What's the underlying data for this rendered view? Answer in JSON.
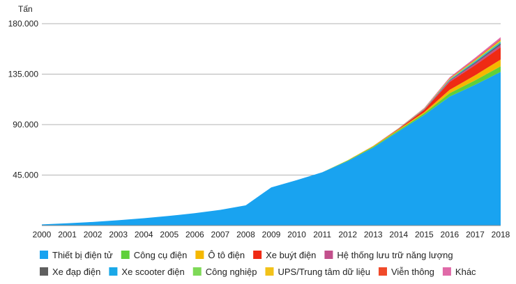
{
  "chart_data": {
    "type": "area",
    "stacked": true,
    "title": "",
    "xlabel": "",
    "ylabel": "Tấn",
    "ylim": [
      0,
      180000
    ],
    "yticks": [
      {
        "value": 45000,
        "label": "45.000"
      },
      {
        "value": 90000,
        "label": "90.000"
      },
      {
        "value": 135000,
        "label": "135.000"
      },
      {
        "value": 180000,
        "label": "180.000"
      }
    ],
    "categories": [
      "2000",
      "2001",
      "2002",
      "2003",
      "2004",
      "2005",
      "2006",
      "2007",
      "2008",
      "2009",
      "2010",
      "2011",
      "2012",
      "2013",
      "2014",
      "2015",
      "2016",
      "2017",
      "2018"
    ],
    "grid": true,
    "legend_position": "bottom",
    "series": [
      {
        "name": "Thiết bị điện tử",
        "color": "#19a3f0",
        "values": [
          1000,
          2000,
          3200,
          4700,
          6500,
          8600,
          11000,
          14000,
          18000,
          34000,
          40500,
          47500,
          57500,
          69500,
          84000,
          98500,
          115000,
          125500,
          137000
        ]
      },
      {
        "name": "Công cụ điện",
        "color": "#5fd03a",
        "values": [
          0,
          0,
          0,
          0,
          0,
          0,
          0,
          0,
          0,
          0,
          0,
          0,
          500,
          800,
          1000,
          1500,
          3000,
          4000,
          5000
        ]
      },
      {
        "name": "Ô tô điện",
        "color": "#f5b800",
        "values": [
          0,
          0,
          0,
          0,
          0,
          0,
          0,
          0,
          0,
          0,
          0,
          0,
          300,
          500,
          700,
          1000,
          3000,
          4500,
          6000
        ]
      },
      {
        "name": "Xe buýt điện",
        "color": "#ef2a14",
        "values": [
          0,
          0,
          0,
          0,
          0,
          0,
          0,
          0,
          0,
          0,
          0,
          0,
          0,
          200,
          500,
          2000,
          7000,
          9000,
          11000
        ]
      },
      {
        "name": "Hệ thống lưu trữ năng lượng",
        "color": "#c2508c",
        "values": [
          0,
          0,
          0,
          0,
          0,
          0,
          0,
          0,
          0,
          0,
          0,
          0,
          0,
          0,
          200,
          500,
          1000,
          1500,
          2000
        ]
      },
      {
        "name": "Xe đạp điện",
        "color": "#5f5f5f",
        "values": [
          0,
          0,
          0,
          0,
          0,
          0,
          0,
          0,
          0,
          0,
          0,
          0,
          0,
          0,
          100,
          300,
          500,
          1000,
          1500
        ]
      },
      {
        "name": "Xe scooter điện",
        "color": "#1aa8e8",
        "values": [
          0,
          0,
          0,
          0,
          0,
          0,
          0,
          0,
          0,
          0,
          0,
          0,
          0,
          0,
          100,
          200,
          500,
          800,
          1000
        ]
      },
      {
        "name": "Công nghiệp",
        "color": "#7ed957",
        "values": [
          0,
          0,
          0,
          0,
          0,
          0,
          0,
          0,
          0,
          0,
          0,
          0,
          0,
          0,
          100,
          200,
          500,
          800,
          1000
        ]
      },
      {
        "name": "UPS/Trung tâm dữ liệu",
        "color": "#f2c21a",
        "values": [
          0,
          0,
          0,
          0,
          0,
          0,
          0,
          0,
          0,
          0,
          0,
          0,
          0,
          0,
          100,
          200,
          500,
          700,
          900
        ]
      },
      {
        "name": "Viễn thông",
        "color": "#f04a2a",
        "values": [
          0,
          0,
          0,
          0,
          0,
          0,
          0,
          0,
          0,
          0,
          0,
          0,
          0,
          0,
          100,
          200,
          400,
          600,
          800
        ]
      },
      {
        "name": "Khác",
        "color": "#e06aa8",
        "values": [
          0,
          0,
          0,
          0,
          0,
          0,
          0,
          0,
          0,
          0,
          0,
          0,
          0,
          0,
          100,
          300,
          800,
          1300,
          1800
        ]
      }
    ]
  }
}
